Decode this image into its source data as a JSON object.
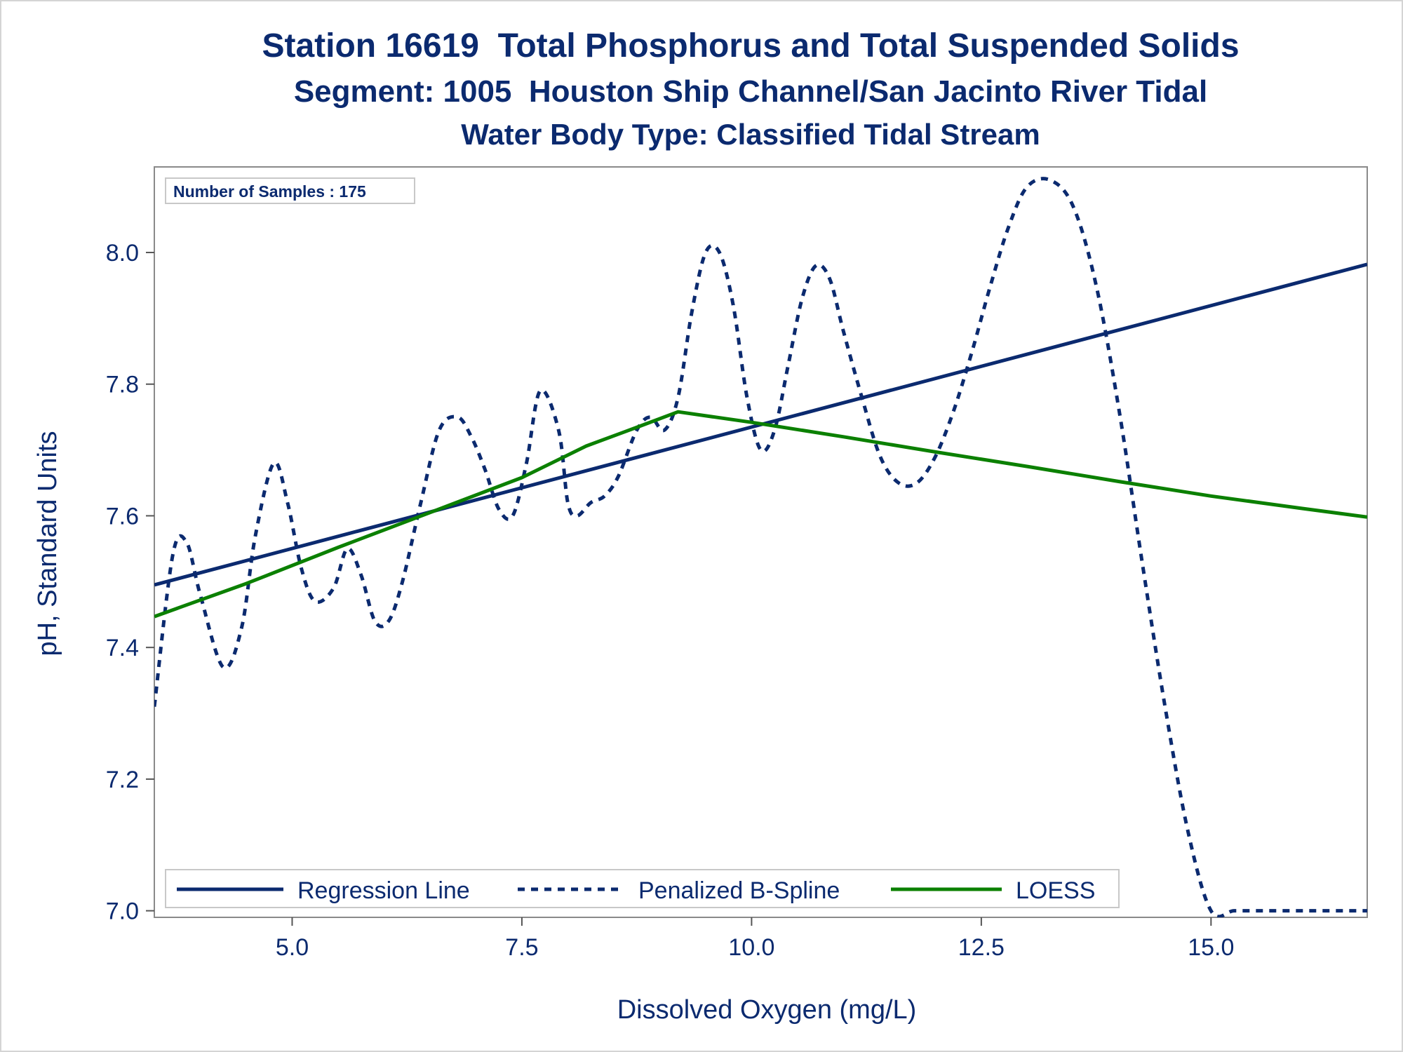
{
  "chart_data": {
    "type": "line",
    "title": "Station 16619  Total Phosphorus and Total Suspended Solids",
    "subtitle": "Segment: 1005  Houston Ship Channel/San Jacinto River Tidal",
    "subtitle2": "Water Body Type: Classified Tidal Stream",
    "xlabel": "Dissolved Oxygen (mg/L)",
    "ylabel": "pH, Standard Units",
    "xlim": [
      3.5,
      16.7
    ],
    "ylim": [
      6.99,
      8.13
    ],
    "xticks": [
      5.0,
      7.5,
      10.0,
      12.5,
      15.0
    ],
    "xtick_labels": [
      "5.0",
      "7.5",
      "10.0",
      "12.5",
      "15.0"
    ],
    "yticks": [
      7.0,
      7.2,
      7.4,
      7.6,
      7.8,
      8.0
    ],
    "ytick_labels": [
      "7.0",
      "7.2",
      "7.4",
      "7.6",
      "7.8",
      "8.0"
    ],
    "grid": false,
    "legend_position": "bottom-left inside",
    "inset_label": "Number of Samples : 175",
    "series": [
      {
        "name": "Regression Line",
        "color": "#0b2a6f",
        "style": "solid",
        "x": [
          3.5,
          16.7
        ],
        "y": [
          7.495,
          7.982
        ]
      },
      {
        "name": "Penalized B-Spline",
        "color": "#0b2a6f",
        "style": "dashed",
        "x": [
          3.5,
          3.7,
          3.85,
          4.0,
          4.25,
          4.45,
          4.6,
          4.8,
          4.95,
          5.1,
          5.25,
          5.45,
          5.6,
          5.75,
          5.9,
          6.05,
          6.2,
          6.4,
          6.6,
          6.8,
          6.95,
          7.1,
          7.25,
          7.4,
          7.55,
          7.7,
          7.9,
          8.0,
          8.1,
          8.25,
          8.4,
          8.55,
          8.75,
          8.9,
          9.05,
          9.2,
          9.35,
          9.5,
          9.65,
          9.8,
          9.95,
          10.1,
          10.25,
          10.4,
          10.55,
          10.7,
          10.85,
          11.0,
          11.2,
          11.4,
          11.6,
          11.8,
          12.0,
          12.2,
          12.4,
          12.6,
          12.8,
          13.0,
          13.25,
          13.5,
          13.75,
          14.0,
          14.25,
          14.5,
          14.75,
          15.0,
          15.25,
          15.5,
          15.75,
          16.0,
          16.25,
          16.5,
          16.7
        ],
        "y": [
          7.31,
          7.54,
          7.56,
          7.48,
          7.37,
          7.43,
          7.57,
          7.68,
          7.62,
          7.52,
          7.47,
          7.49,
          7.55,
          7.51,
          7.44,
          7.44,
          7.5,
          7.62,
          7.73,
          7.75,
          7.72,
          7.67,
          7.61,
          7.6,
          7.68,
          7.79,
          7.73,
          7.62,
          7.6,
          7.62,
          7.63,
          7.66,
          7.73,
          7.75,
          7.73,
          7.78,
          7.91,
          8.0,
          8.0,
          7.92,
          7.78,
          7.7,
          7.73,
          7.83,
          7.93,
          7.98,
          7.96,
          7.88,
          7.78,
          7.69,
          7.65,
          7.65,
          7.69,
          7.76,
          7.85,
          7.95,
          8.04,
          8.1,
          8.11,
          8.07,
          7.95,
          7.76,
          7.53,
          7.31,
          7.12,
          7.0,
          7.0,
          7.0,
          7.0,
          7.0,
          7.0,
          7.0,
          7.0
        ]
      },
      {
        "name": "LOESS",
        "color": "#0b8000",
        "style": "solid",
        "x": [
          3.5,
          4.5,
          5.5,
          6.5,
          7.5,
          8.2,
          8.8,
          9.2,
          10.0,
          11.0,
          12.0,
          13.0,
          14.0,
          15.0,
          16.0,
          16.7
        ],
        "y": [
          7.447,
          7.497,
          7.552,
          7.605,
          7.658,
          7.706,
          7.737,
          7.758,
          7.742,
          7.72,
          7.697,
          7.675,
          7.652,
          7.63,
          7.611,
          7.598
        ]
      }
    ]
  }
}
